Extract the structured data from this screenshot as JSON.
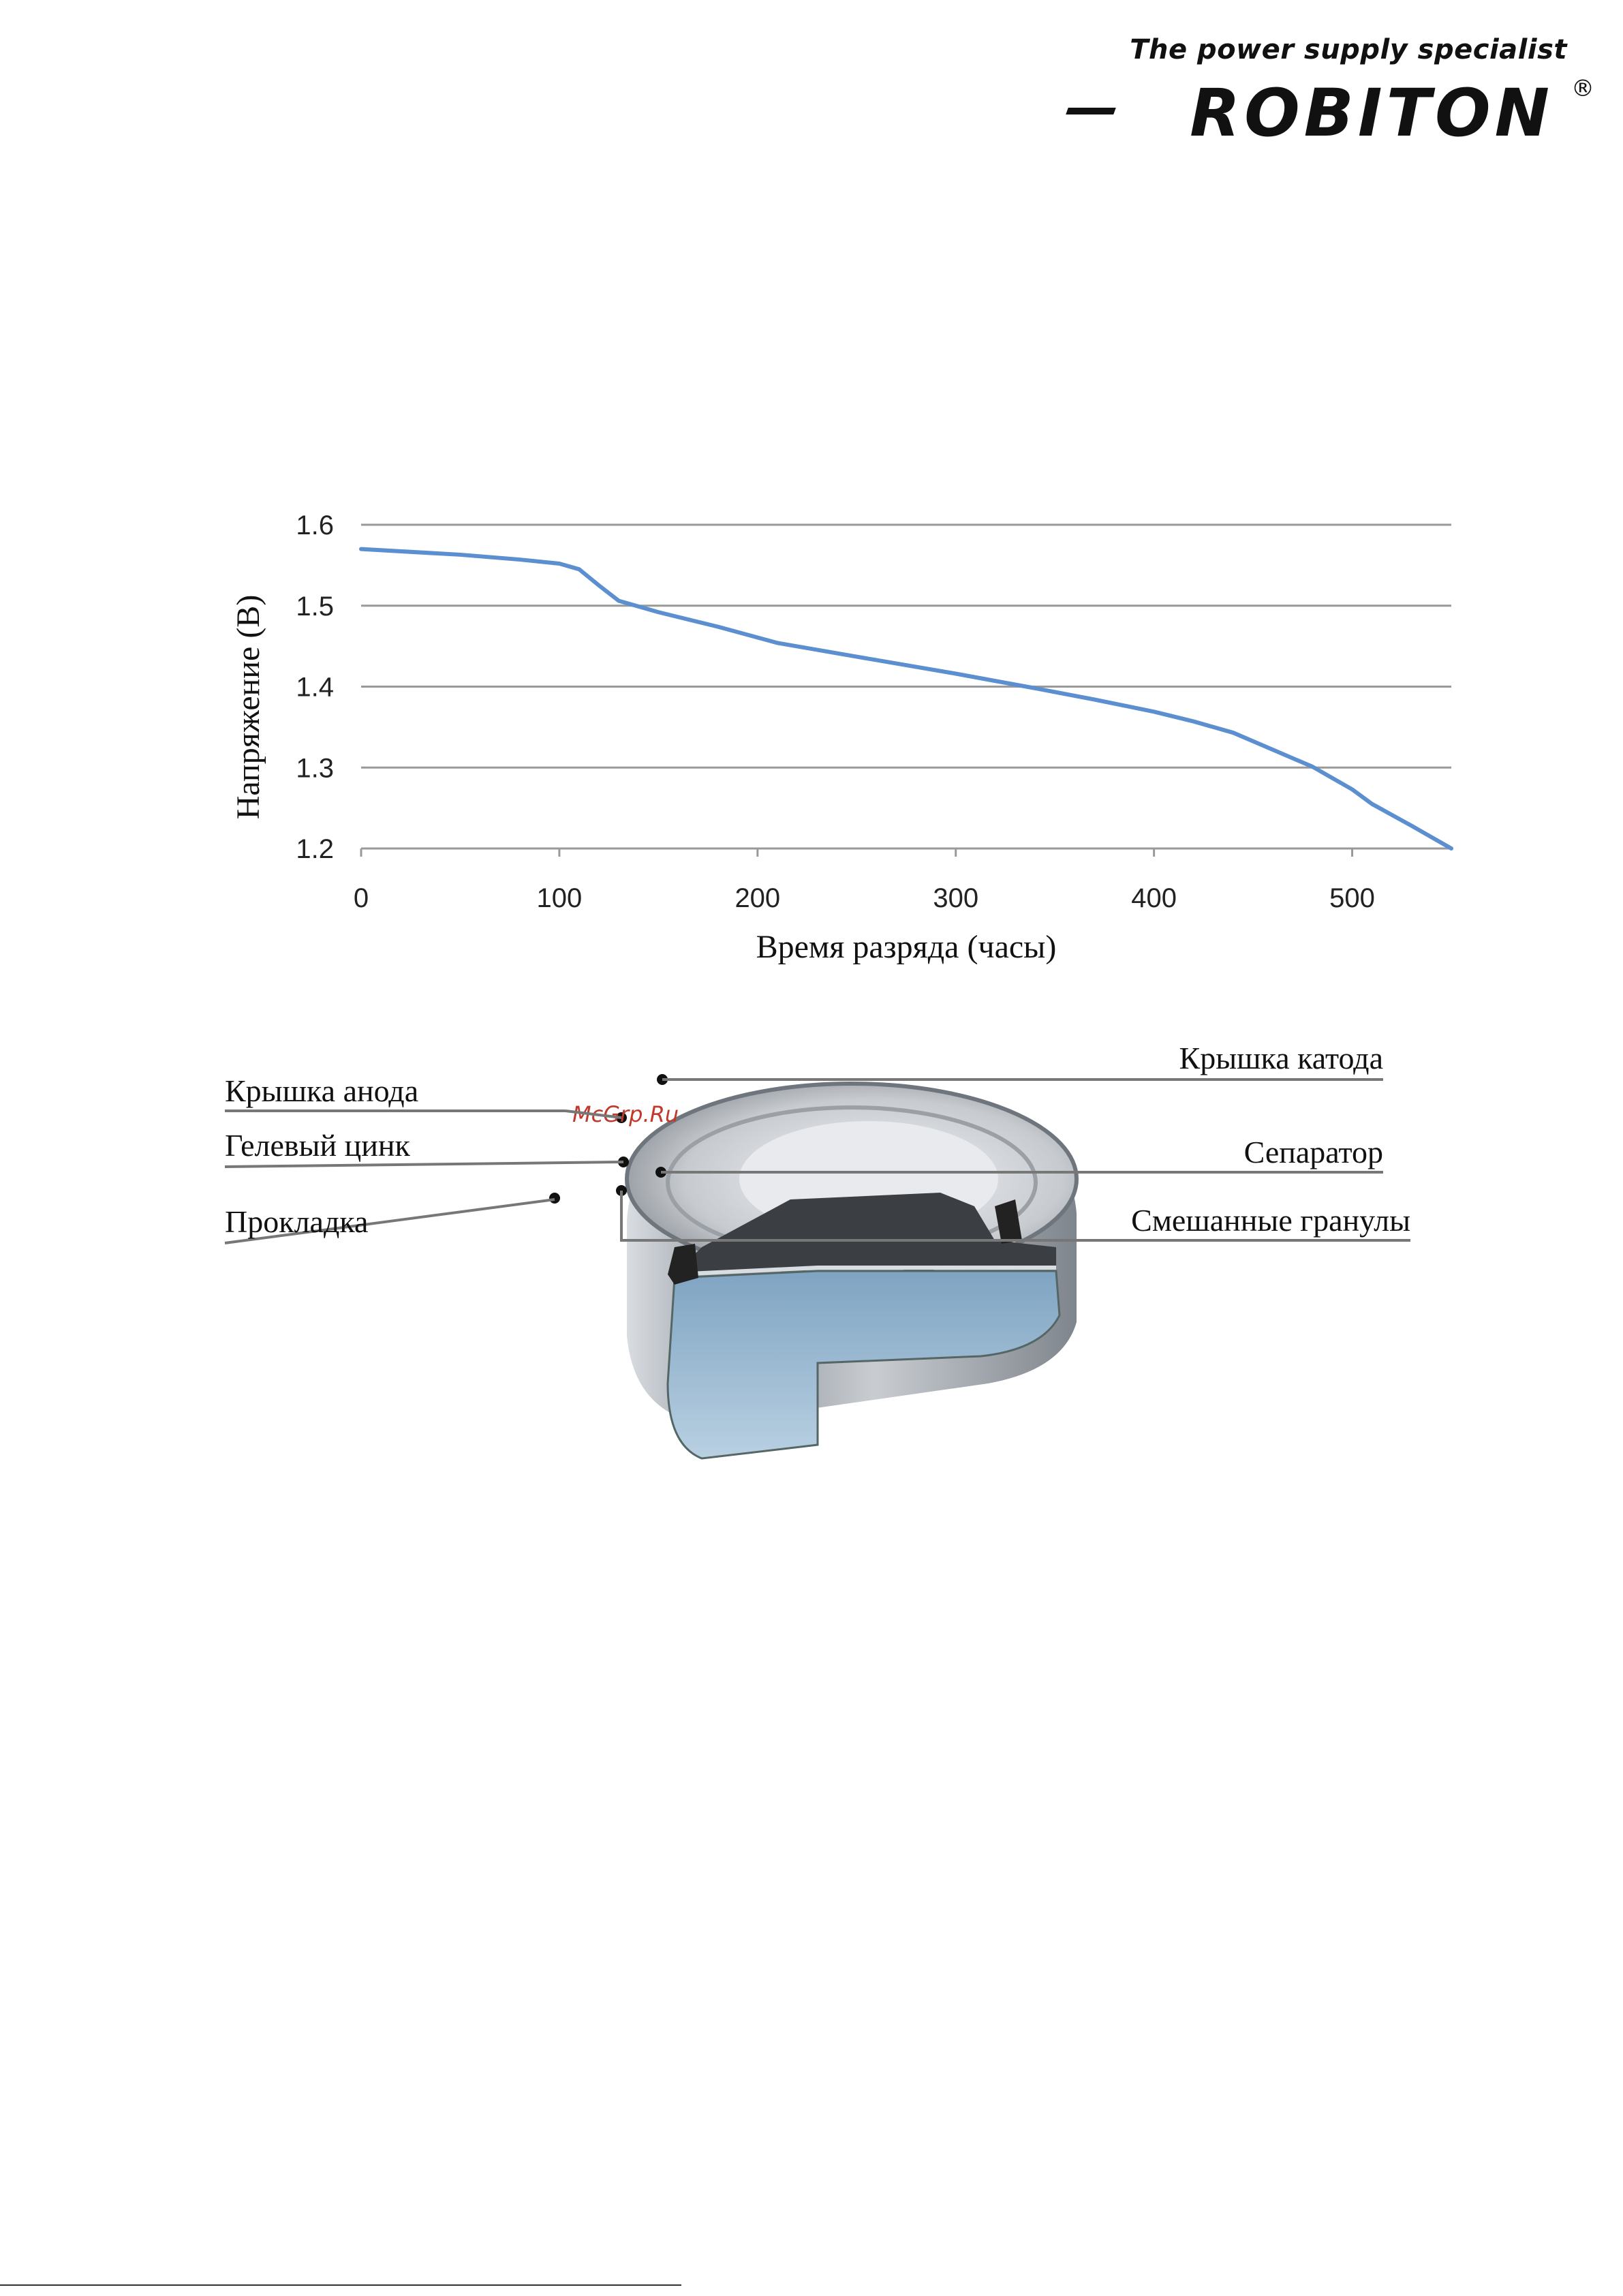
{
  "header": {
    "tagline": "The power supply specialist",
    "brand": "ROBITON",
    "registered_mark": "®"
  },
  "chart_data": {
    "type": "line",
    "title": "",
    "xlabel": "Время разряда (часы)",
    "ylabel": "Напряжение (В)",
    "xlim": [
      0,
      550
    ],
    "ylim": [
      1.2,
      1.6
    ],
    "xticks": [
      "0",
      "100",
      "200",
      "300",
      "400",
      "500"
    ],
    "yticks": [
      "1.2",
      "1.3",
      "1.4",
      "1.5",
      "1.6"
    ],
    "grid": "horizontal",
    "series": [
      {
        "color": "#5b8fd0",
        "x": [
          0,
          50,
          80,
          100,
          110,
          120,
          130,
          150,
          180,
          210,
          250,
          300,
          340,
          370,
          400,
          420,
          440,
          460,
          480,
          500,
          510,
          530,
          550
        ],
        "y": [
          1.57,
          1.563,
          1.557,
          1.552,
          1.545,
          1.525,
          1.506,
          1.492,
          1.474,
          1.454,
          1.437,
          1.416,
          1.398,
          1.384,
          1.369,
          1.357,
          1.343,
          1.322,
          1.301,
          1.273,
          1.255,
          1.228,
          1.2
        ]
      }
    ]
  },
  "diagram": {
    "labels": {
      "cathode_cap": "Крышка катода",
      "anode_cap": "Крышка анода",
      "gel_zinc": "Гелевый цинк",
      "separator": "Сепаратор",
      "gasket": "Прокладка",
      "mixed_granules": "Смешанные гранулы"
    },
    "watermark": "McGrp.Ru"
  }
}
